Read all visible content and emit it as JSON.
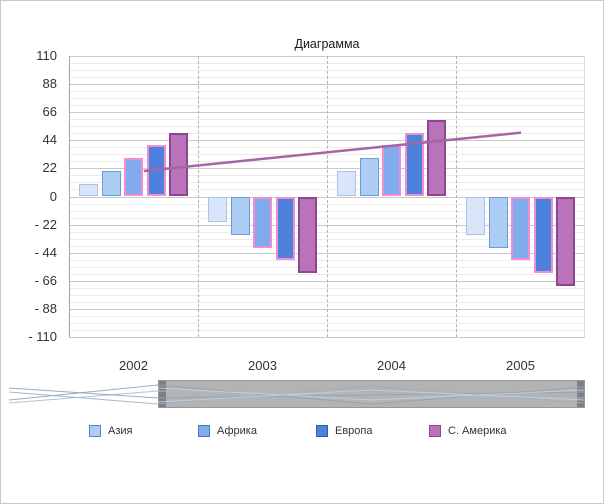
{
  "chart_data": {
    "type": "bar",
    "title": "Диаграмма",
    "categories": [
      "2002",
      "2003",
      "2004",
      "2005"
    ],
    "series": [
      {
        "name": "",
        "fill": "#d9e6f9",
        "stroke": "#a9c3ea",
        "stroke_width": 1,
        "values": [
          10,
          -20,
          20,
          -30
        ]
      },
      {
        "name": "Азия",
        "fill": "#aecdf4",
        "stroke": "#6d9add",
        "stroke_width": 1,
        "values": [
          20,
          -30,
          30,
          -40
        ]
      },
      {
        "name": "Африка",
        "fill": "#82abee",
        "stroke": "#ee8fd6",
        "stroke_width": 2,
        "values": [
          30,
          -40,
          40,
          -50
        ]
      },
      {
        "name": "Европа",
        "fill": "#4d82dc",
        "stroke": "#ee8fd6",
        "stroke_width": 2,
        "values": [
          40,
          -50,
          50,
          -60
        ]
      },
      {
        "name": "С. Америка",
        "fill": "#b873ba",
        "stroke": "#8f4691",
        "stroke_width": 2,
        "values": [
          50,
          -60,
          60,
          -70
        ]
      }
    ],
    "trendline": {
      "start_frac": 0.145,
      "start_value": 20,
      "end_frac": 0.876,
      "end_value": 50,
      "color": "#a565a5"
    },
    "ylim": [
      -110,
      110
    ],
    "ytick_step": 22,
    "yminor_step": 5.5,
    "grid": true,
    "legend_position": "bottom",
    "legend": [
      {
        "label": "Азия",
        "color": "#aecdf4",
        "border": "#5585c8"
      },
      {
        "label": "Африка",
        "color": "#82abee",
        "border": "#4a78c0"
      },
      {
        "label": "Европа",
        "color": "#4d82dc",
        "border": "#2f5fb0"
      },
      {
        "label": "С. Америка",
        "color": "#b873ba",
        "border": "#8f4691"
      }
    ]
  }
}
